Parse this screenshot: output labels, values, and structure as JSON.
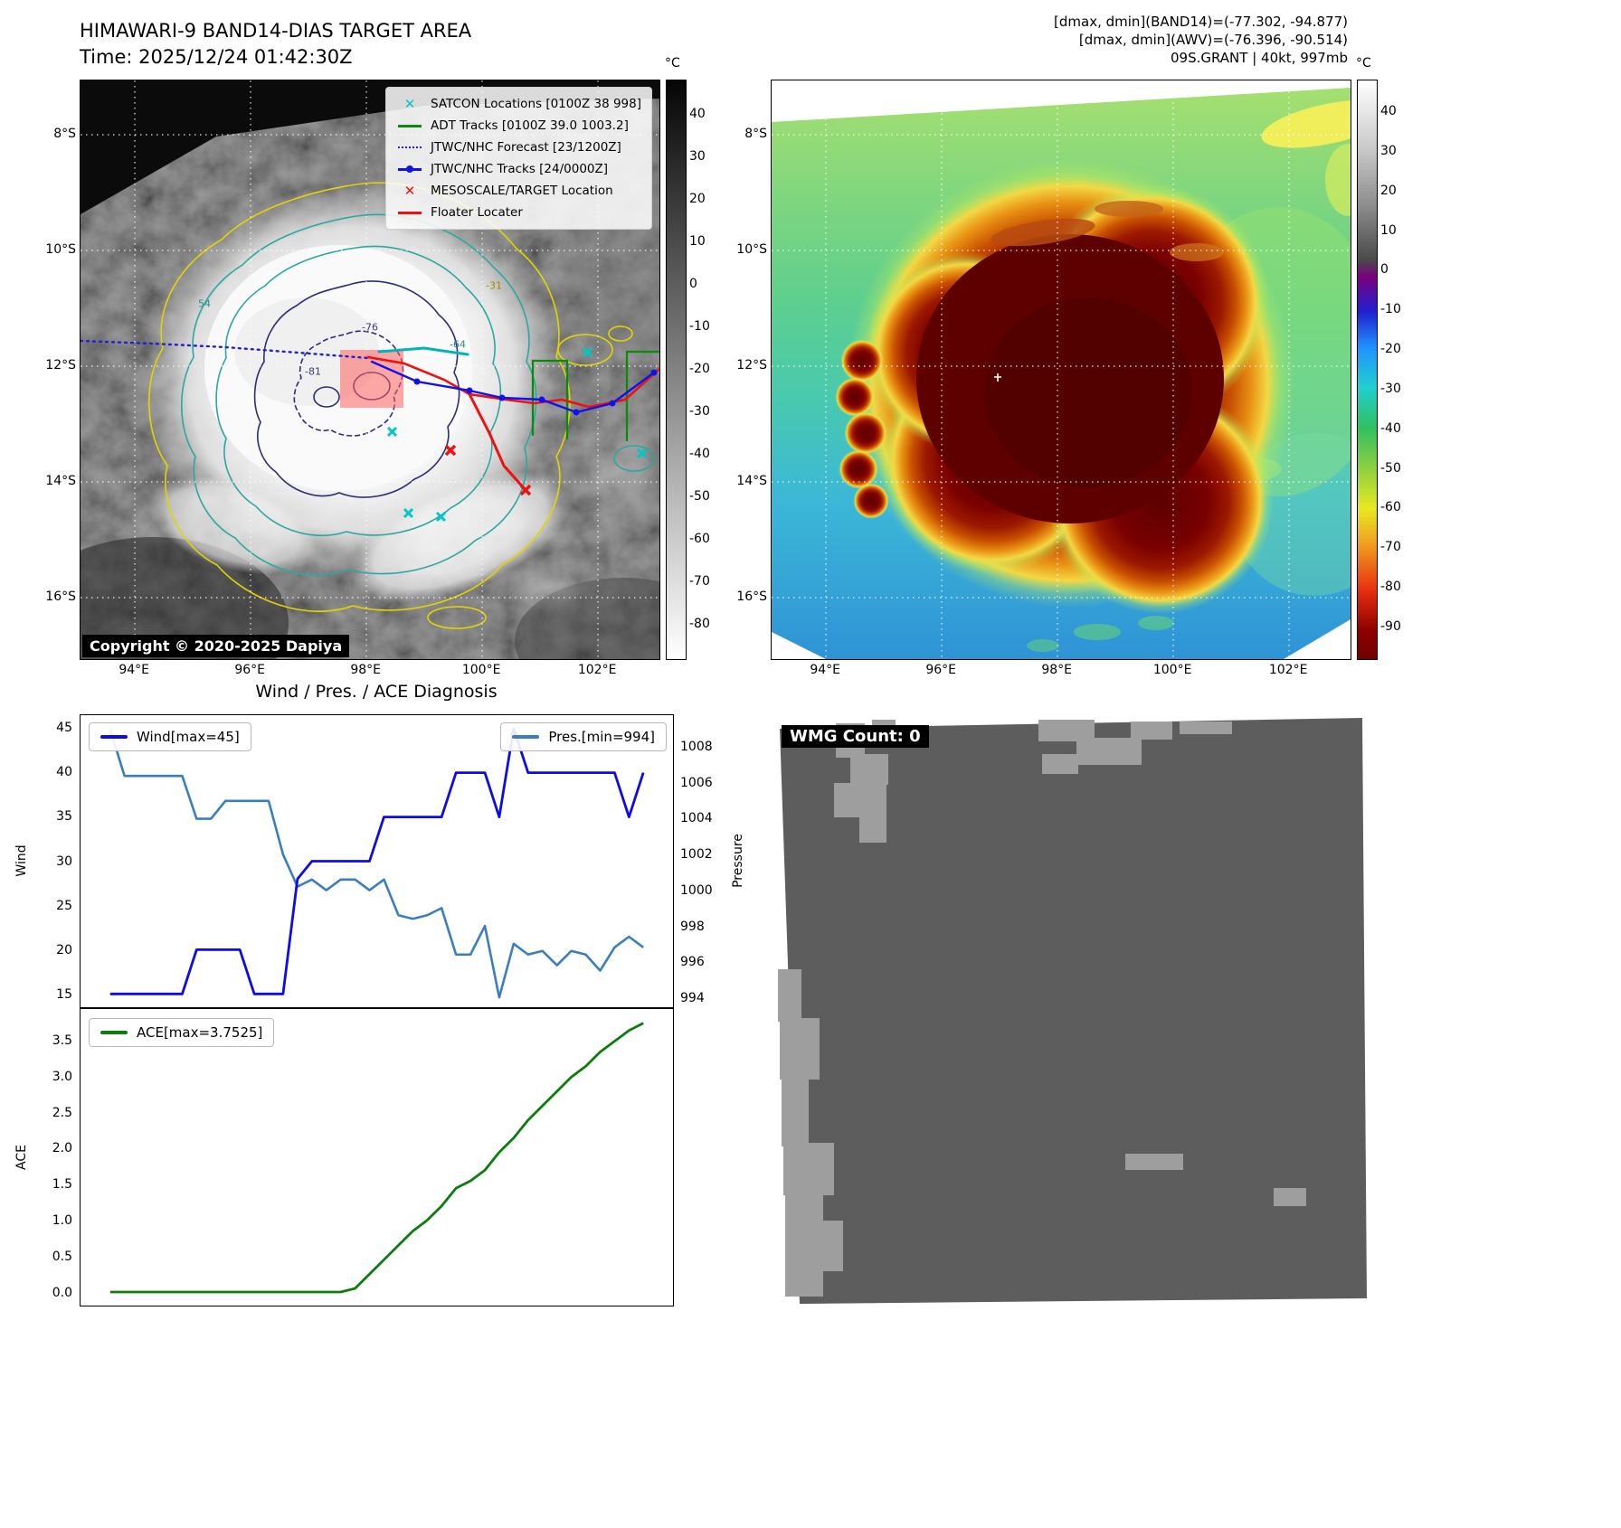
{
  "panel_band14": {
    "title": "HIMAWARI-9 BAND14-DIAS TARGET AREA",
    "subtitle": "Time: 2025/12/24 01:42:30Z",
    "copyright": "Copyright © 2020-2025 Dapiya",
    "legend": [
      {
        "label": "SATCON Locations [0100Z 38 998]",
        "marker": "x",
        "color": "#00c8c8"
      },
      {
        "label": "ADT Tracks [0100Z 39.0 1003.2]",
        "marker": "line",
        "color": "#0a8a0a"
      },
      {
        "label": "JTWC/NHC Forecast [23/1200Z]",
        "marker": "dotted",
        "color": "#2222cc"
      },
      {
        "label": "JTWC/NHC Tracks [24/0000Z]",
        "marker": "line-dot",
        "color": "#1111ee"
      },
      {
        "label": "MESOSCALE/TARGET Location",
        "marker": "x",
        "color": "#ee1111"
      },
      {
        "label": "Floater Locater",
        "marker": "line",
        "color": "#ee1111"
      }
    ],
    "contour_labels": [
      "-31",
      "-76",
      "-64",
      "-81",
      "54"
    ],
    "lat_ticks": [
      "8°S",
      "10°S",
      "12°S",
      "14°S",
      "16°S"
    ],
    "lon_ticks": [
      "94°E",
      "96°E",
      "98°E",
      "100°E",
      "102°E"
    ],
    "colorbar": {
      "unit": "°C",
      "ticks": [
        40,
        30,
        20,
        10,
        0,
        -10,
        -20,
        -30,
        -40,
        -50,
        -60,
        -70,
        -80
      ],
      "vmax": 48,
      "vmin": -88
    }
  },
  "panel_awv": {
    "header_lines": [
      "[dmax, dmin](BAND14)=(-77.302, -94.877)",
      "[dmax, dmin](AWV)=(-76.396, -90.514)",
      "09S.GRANT | 40kt, 997mb"
    ],
    "lat_ticks": [
      "8°S",
      "10°S",
      "12°S",
      "14°S",
      "16°S"
    ],
    "lon_ticks": [
      "94°E",
      "96°E",
      "98°E",
      "100°E",
      "102°E"
    ],
    "colorbar": {
      "unit": "°C",
      "ticks": [
        40,
        30,
        20,
        10,
        0,
        -10,
        -20,
        -30,
        -40,
        -50,
        -60,
        -70,
        -80,
        -90
      ],
      "vmax": 48,
      "vmin": -98
    }
  },
  "panel_wmg": {
    "label": "WMG Count: 0"
  },
  "chart_data": [
    {
      "type": "line",
      "title": "Wind / Pres. / ACE Diagnosis",
      "x_note": "time steps, x-axis unlabeled in figure",
      "series": [
        {
          "name": "Wind[max=45]",
          "axis": "left",
          "color": "#0b0bee",
          "values": [
            15,
            15,
            15,
            15,
            15,
            15,
            20,
            20,
            20,
            20,
            15,
            15,
            15,
            28,
            30,
            30,
            30,
            30,
            30,
            35,
            35,
            35,
            35,
            35,
            40,
            40,
            40,
            35,
            45,
            40,
            40,
            40,
            40,
            40,
            40,
            40,
            35,
            40
          ]
        },
        {
          "name": "Pres.[min=994]",
          "axis": "right",
          "color": "#3a7ebf",
          "values": [
            1009,
            1006.4,
            1006.4,
            1006.4,
            1006.4,
            1006.4,
            1004,
            1004,
            1005,
            1005,
            1005,
            1005,
            1002,
            1000.2,
            1000.6,
            1000,
            1000.6,
            1000.6,
            1000,
            1000.6,
            998.6,
            998.4,
            998.6,
            999,
            996.4,
            996.4,
            998,
            994,
            997,
            996.4,
            996.6,
            995.8,
            996.6,
            996.4,
            995.5,
            996.8,
            997.4,
            996.8
          ]
        }
      ],
      "left_axis": {
        "label": "Wind",
        "ticks": [
          15,
          20,
          25,
          30,
          35,
          40,
          45
        ],
        "lim": [
          13.5,
          46.5
        ]
      },
      "right_axis": {
        "label": "Pressure",
        "ticks": [
          994,
          996,
          998,
          1000,
          1002,
          1004,
          1006,
          1008
        ],
        "lim": [
          993.45,
          1009.8
        ]
      },
      "grid": false,
      "legend_position": "top-left and top-right inside axes"
    },
    {
      "type": "line",
      "series": [
        {
          "name": "ACE[max=3.7525]",
          "axis": "left",
          "color": "#0a7d0a",
          "values": [
            0,
            0,
            0,
            0,
            0,
            0,
            0,
            0,
            0,
            0,
            0,
            0,
            0,
            0,
            0,
            0,
            0,
            0.05,
            0.25,
            0.45,
            0.65,
            0.85,
            1.0,
            1.2,
            1.45,
            1.55,
            1.7,
            1.95,
            2.15,
            2.4,
            2.6,
            2.8,
            3.0,
            3.15,
            3.35,
            3.5,
            3.65,
            3.7525
          ]
        }
      ],
      "left_axis": {
        "label": "ACE",
        "ticks": [
          "0.0",
          "0.5",
          "1.0",
          "1.5",
          "2.0",
          "2.5",
          "3.0",
          "3.5"
        ],
        "lim": [
          -0.19,
          3.95
        ]
      },
      "grid": false,
      "legend_position": "top-left inside axes"
    }
  ]
}
